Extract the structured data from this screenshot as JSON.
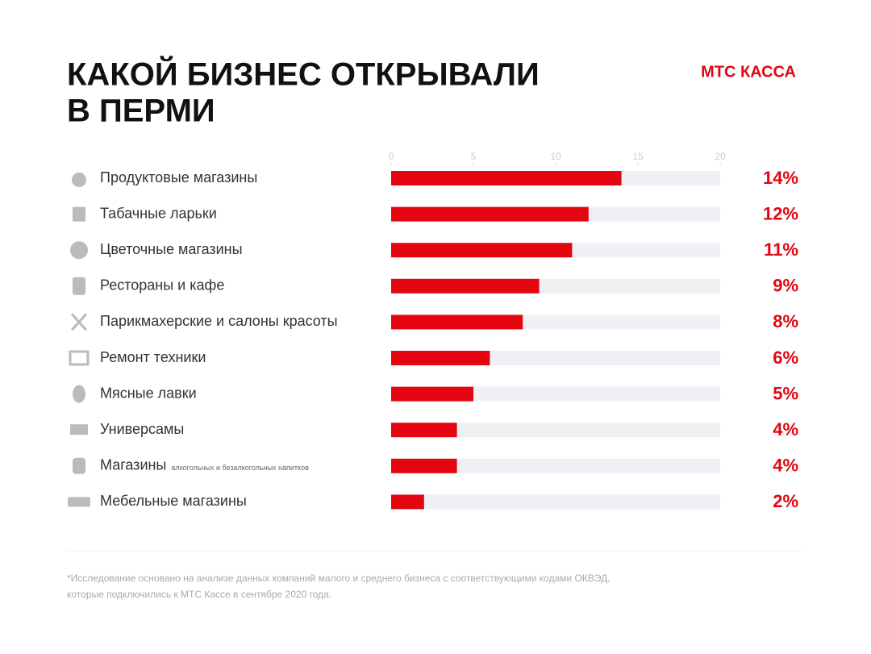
{
  "chart_data": {
    "type": "bar",
    "orientation": "horizontal",
    "title": [
      "КАКОЙ БИЗНЕС ОТКРЫВАЛИ",
      "В ПЕРМИ"
    ],
    "brand": "МТС КАССА",
    "categories": [
      "Продуктовые магазины",
      "Табачные ларьки",
      "Цветочные магазины",
      "Рестораны и кафе",
      "Парикмахерские и салоны красоты",
      "Ремонт техники",
      "Мясные лавки",
      "Универсамы",
      "Магазины",
      "Мебельные магазины"
    ],
    "category_notes": [
      null,
      null,
      null,
      null,
      null,
      null,
      null,
      null,
      "алкогольных и безалкогольных напитков",
      null
    ],
    "values": [
      14,
      12,
      11,
      9,
      8,
      6,
      5,
      4,
      4,
      2
    ],
    "value_labels": [
      "14%",
      "12%",
      "11%",
      "9%",
      "8%",
      "6%",
      "5%",
      "4%",
      "4%",
      "2%"
    ],
    "color": "#e30611",
    "track_color": "#eef0f3",
    "xlim": [
      0,
      20
    ],
    "xticks": [
      0,
      5,
      10,
      15,
      20
    ],
    "footnote": [
      "*Исследование основано на анализе данных компаний малого и среднего бизнеса с соответствующими кодами ОКВЭД,",
      "которые подключились к МТС Кассе в сентябре 2020 года."
    ]
  }
}
